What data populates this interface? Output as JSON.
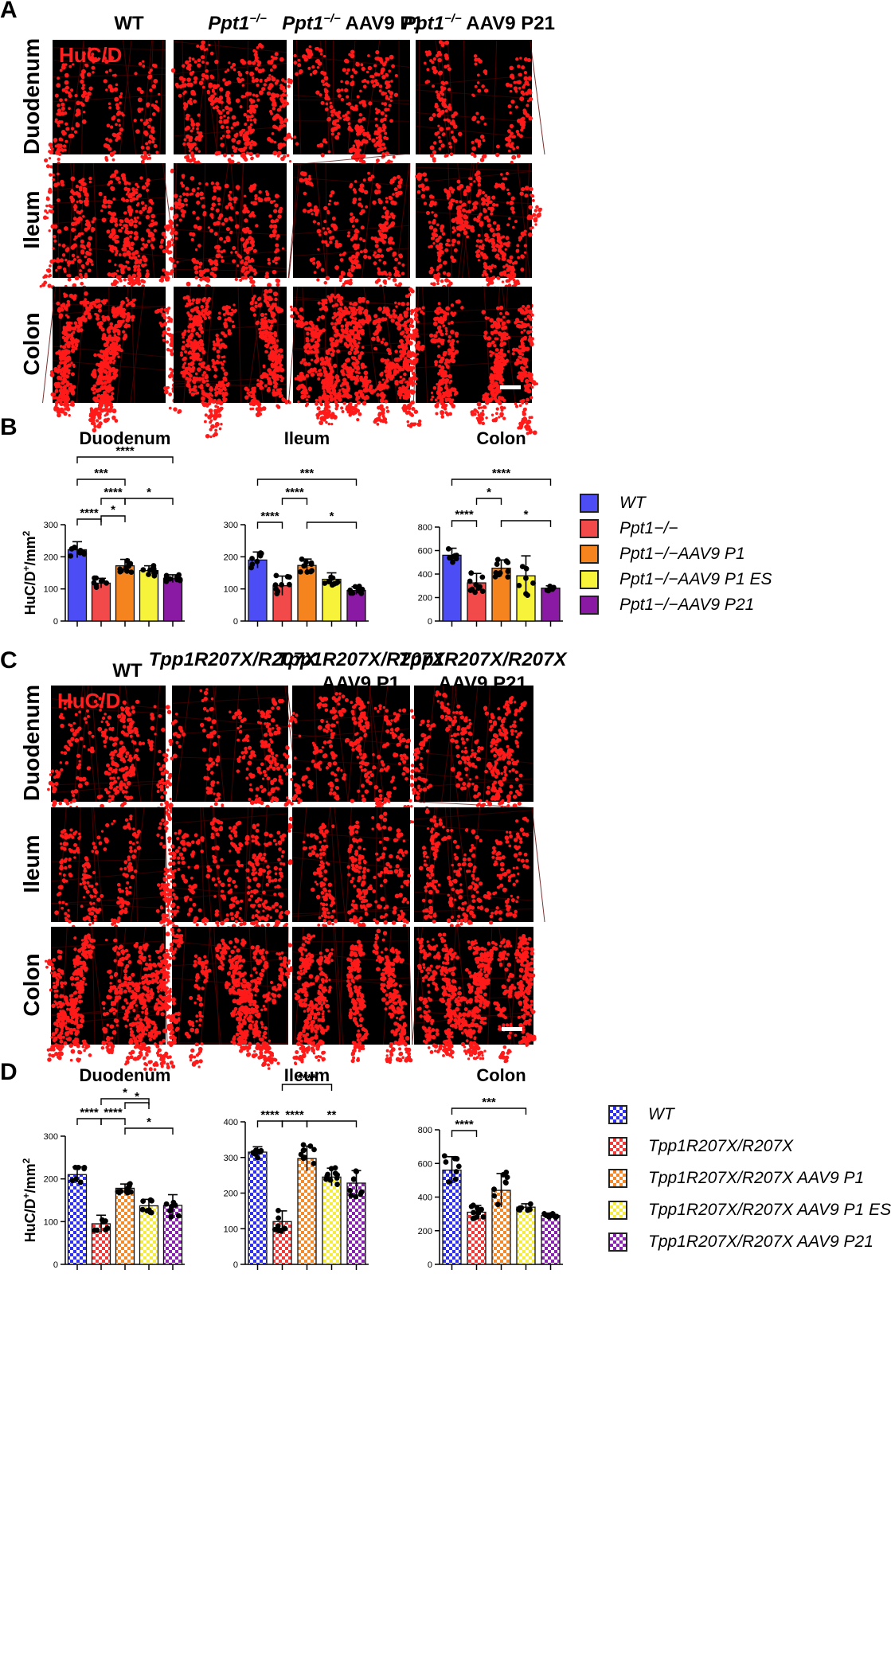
{
  "panels": {
    "A": {
      "letter": "A",
      "stain": "HuC/D",
      "columns": [
        {
          "pre": "",
          "gene": "",
          "sup": "",
          "post": "WT"
        },
        {
          "pre": "",
          "gene": "Ppt1",
          "sup": "−/−",
          "post": ""
        },
        {
          "pre": "",
          "gene": "Ppt1",
          "sup": "−/−",
          "post": " AAV9 P1"
        },
        {
          "pre": "",
          "gene": "Ppt1",
          "sup": "−/−",
          "post": " AAV9 P21"
        }
      ],
      "rows": [
        "Duodenum",
        "Ileum",
        "Colon"
      ]
    },
    "B": {
      "letter": "B",
      "legend": [
        {
          "label": "WT",
          "color": "#4d4df5"
        },
        {
          "label": "Ppt1−/−",
          "color": "#f24a4a"
        },
        {
          "label": "Ppt1−/−AAV9 P1",
          "color": "#f5841f"
        },
        {
          "label": "Ppt1−/−AAV9 P1 ES",
          "color": "#f7f23a"
        },
        {
          "label": "Ppt1−/−AAV9 P21",
          "color": "#8a1aa3"
        }
      ]
    },
    "C": {
      "letter": "C",
      "stain": "HuC/D",
      "columns": [
        {
          "line1": "WT",
          "line2": ""
        },
        {
          "line1": "Tpp1R207X/R207X",
          "line2": ""
        },
        {
          "line1": "Tpp1R207X/R207X",
          "line2": "AAV9 P1"
        },
        {
          "line1": "Tpp1R207X/R207X",
          "line2": "AAV9 P21"
        }
      ],
      "rows": [
        "Duodenum",
        "Ileum",
        "Colon"
      ]
    },
    "D": {
      "letter": "D",
      "legend": [
        {
          "label": "WT",
          "color": "#2f2ff2"
        },
        {
          "label": "Tpp1R207X/R207X",
          "color": "#f23a3a"
        },
        {
          "label": "Tpp1R207X/R207X AAV9 P1",
          "color": "#f58a2a"
        },
        {
          "label": "Tpp1R207X/R207X AAV9 P1 ES",
          "color": "#f5ee40"
        },
        {
          "label": "Tpp1R207X/R207X AAV9 P21",
          "color": "#8a22b0"
        }
      ]
    }
  },
  "chart_data": [
    {
      "type": "bar",
      "panel": "B",
      "title": "Duodenum",
      "ylabel": "HuC/D+/mm2",
      "ylim": [
        0,
        300
      ],
      "yticks": [
        0,
        100,
        200,
        300
      ],
      "categories": [
        "WT",
        "Ppt1−/−",
        "Ppt1−/−AAV9 P1",
        "Ppt1−/−AAV9 P1 ES",
        "Ppt1−/−AAV9 P21"
      ],
      "values": [
        222,
        118,
        172,
        157,
        132
      ],
      "errors": [
        25,
        15,
        20,
        15,
        12
      ],
      "significance": [
        {
          "a": 0,
          "b": 1,
          "label": "****"
        },
        {
          "a": 1,
          "b": 2,
          "label": "*"
        },
        {
          "a": 1,
          "b": 2,
          "label": "****"
        },
        {
          "a": 2,
          "b": 4,
          "label": "*"
        },
        {
          "a": 0,
          "b": 2,
          "label": "***"
        },
        {
          "a": 0,
          "b": 4,
          "label": "****"
        }
      ]
    },
    {
      "type": "bar",
      "panel": "B",
      "title": "Ileum",
      "ylabel": "",
      "ylim": [
        0,
        300
      ],
      "yticks": [
        0,
        100,
        200,
        300
      ],
      "categories": [
        "WT",
        "Ppt1−/−",
        "Ppt1−/−AAV9 P1",
        "Ppt1−/−AAV9 P1 ES",
        "Ppt1−/−AAV9 P21"
      ],
      "values": [
        190,
        110,
        173,
        130,
        95
      ],
      "errors": [
        25,
        30,
        20,
        20,
        12
      ],
      "significance": [
        {
          "a": 0,
          "b": 1,
          "label": "****"
        },
        {
          "a": 1,
          "b": 2,
          "label": "****"
        },
        {
          "a": 2,
          "b": 4,
          "label": "*"
        },
        {
          "a": 0,
          "b": 4,
          "label": "***"
        }
      ]
    },
    {
      "type": "bar",
      "panel": "B",
      "title": "Colon",
      "ylabel": "",
      "ylim": [
        0,
        800
      ],
      "yticks": [
        0,
        200,
        400,
        600,
        800
      ],
      "categories": [
        "WT",
        "Ppt1−/−",
        "Ppt1−/−AAV9 P1",
        "Ppt1−/−AAV9 P1 ES",
        "Ppt1−/−AAV9 P21"
      ],
      "values": [
        560,
        325,
        450,
        385,
        280
      ],
      "errors": [
        60,
        80,
        70,
        170,
        20
      ],
      "significance": [
        {
          "a": 0,
          "b": 1,
          "label": "****"
        },
        {
          "a": 1,
          "b": 2,
          "label": "*"
        },
        {
          "a": 2,
          "b": 4,
          "label": "*"
        },
        {
          "a": 0,
          "b": 4,
          "label": "****"
        }
      ]
    },
    {
      "type": "bar",
      "panel": "D",
      "title": "Duodenum",
      "ylabel": "HuC/D+/mm2",
      "ylim": [
        0,
        300
      ],
      "yticks": [
        0,
        100,
        200,
        300
      ],
      "categories": [
        "WT",
        "Tpp1R207X/R207X",
        "Tpp1R207X/R207X AAV9 P1",
        "Tpp1R207X/R207X AAV9 P1 ES",
        "Tpp1R207X/R207X AAV9 P21"
      ],
      "values": [
        210,
        95,
        178,
        137,
        138
      ],
      "errors": [
        18,
        20,
        10,
        15,
        25
      ],
      "significance": [
        {
          "a": 0,
          "b": 1,
          "label": "****"
        },
        {
          "a": 1,
          "b": 2,
          "label": "****"
        },
        {
          "a": 2,
          "b": 3,
          "label": "*"
        },
        {
          "a": 2,
          "b": 4,
          "label": "*"
        },
        {
          "a": 1,
          "b": 3,
          "label": "*"
        }
      ]
    },
    {
      "type": "bar",
      "panel": "D",
      "title": "Ileum",
      "ylabel": "",
      "ylim": [
        0,
        400
      ],
      "yticks": [
        0,
        100,
        200,
        300,
        400
      ],
      "categories": [
        "WT",
        "Tpp1R207X/R207X",
        "Tpp1R207X/R207X AAV9 P1",
        "Tpp1R207X/R207X AAV9 P1 ES",
        "Tpp1R207X/R207X AAV9 P21"
      ],
      "values": [
        315,
        120,
        297,
        245,
        228
      ],
      "errors": [
        15,
        30,
        35,
        25,
        35
      ],
      "significance": [
        {
          "a": 0,
          "b": 1,
          "label": "****"
        },
        {
          "a": 1,
          "b": 2,
          "label": "****"
        },
        {
          "a": 2,
          "b": 4,
          "label": "**"
        },
        {
          "a": 1,
          "b": 3,
          "label": "****"
        }
      ]
    },
    {
      "type": "bar",
      "panel": "D",
      "title": "Colon",
      "ylabel": "",
      "ylim": [
        0,
        800
      ],
      "yticks": [
        0,
        200,
        400,
        600,
        800
      ],
      "categories": [
        "WT",
        "Tpp1R207X/R207X",
        "Tpp1R207X/R207X AAV9 P1",
        "Tpp1R207X/R207X AAV9 P1 ES",
        "Tpp1R207X/R207X AAV9 P21"
      ],
      "values": [
        560,
        310,
        440,
        340,
        290
      ],
      "errors": [
        80,
        40,
        100,
        20,
        15
      ],
      "significance": [
        {
          "a": 0,
          "b": 1,
          "label": "****"
        },
        {
          "a": 0,
          "b": 3,
          "label": "***"
        }
      ]
    }
  ]
}
